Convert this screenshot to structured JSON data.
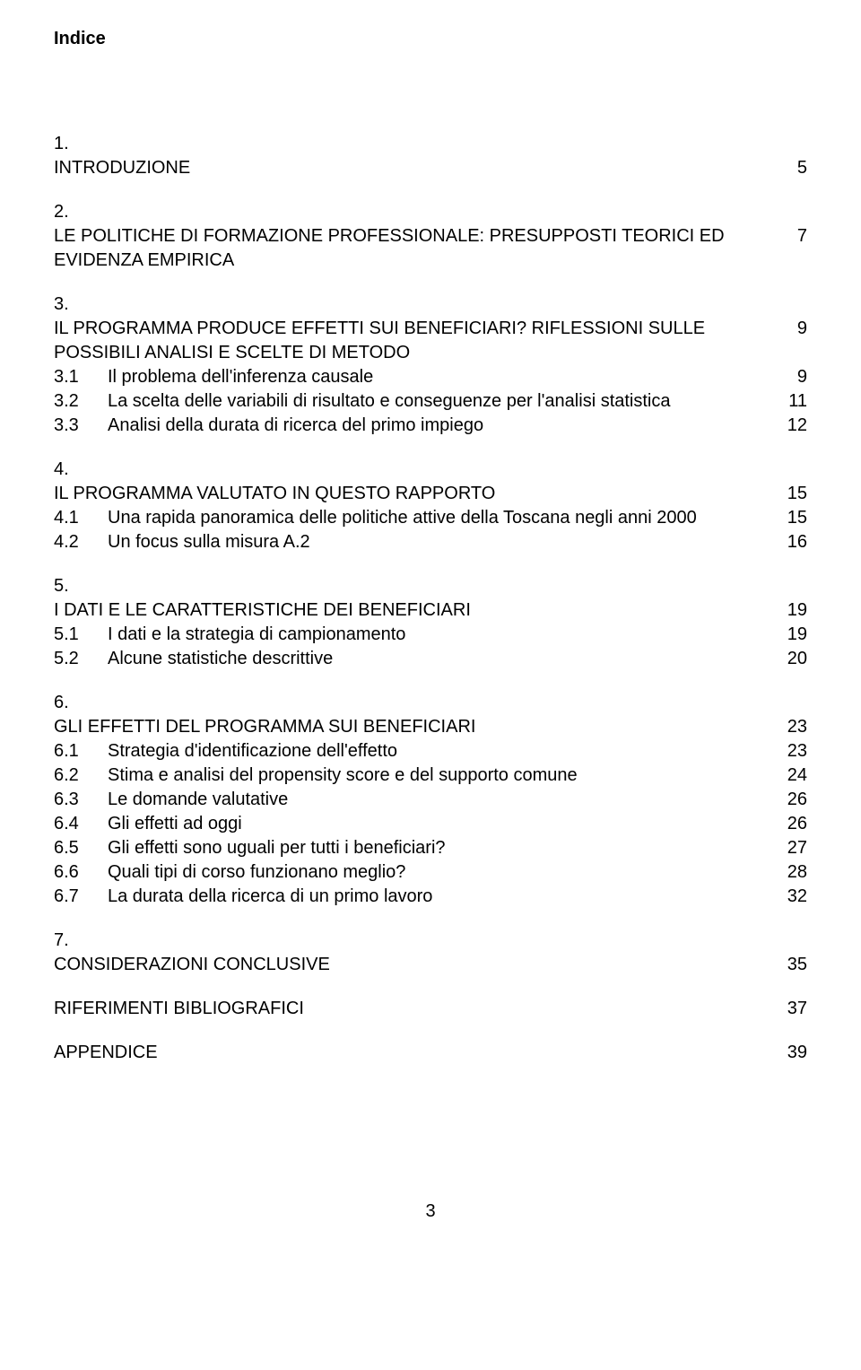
{
  "title": "Indice",
  "sections": [
    {
      "num": "1.",
      "heading": "INTRODUZIONE",
      "page": "5",
      "subs": []
    },
    {
      "num": "2.",
      "heading": "LE POLITICHE DI FORMAZIONE PROFESSIONALE: PRESUPPOSTI TEORICI ED EVIDENZA EMPIRICA",
      "page": "7",
      "subs": []
    },
    {
      "num": "3.",
      "heading": "IL PROGRAMMA PRODUCE EFFETTI SUI BENEFICIARI? RIFLESSIONI SULLE POSSIBILI ANALISI E SCELTE DI METODO",
      "page": "9",
      "subs": [
        {
          "num": "3.1",
          "label": "Il problema dell'inferenza causale",
          "page": "9"
        },
        {
          "num": "3.2",
          "label": "La scelta delle variabili di risultato e conseguenze per l'analisi statistica",
          "page": "11"
        },
        {
          "num": "3.3",
          "label": "Analisi della durata di ricerca del primo impiego",
          "page": "12"
        }
      ]
    },
    {
      "num": "4.",
      "heading": "IL PROGRAMMA VALUTATO IN QUESTO RAPPORTO",
      "page": "15",
      "subs": [
        {
          "num": "4.1",
          "label": "Una rapida panoramica delle politiche attive della Toscana negli anni 2000",
          "page": "15"
        },
        {
          "num": "4.2",
          "label": "Un focus sulla misura A.2",
          "page": "16"
        }
      ]
    },
    {
      "num": "5.",
      "heading": "I DATI E LE CARATTERISTICHE DEI BENEFICIARI",
      "page": "19",
      "subs": [
        {
          "num": "5.1",
          "label": "I dati e la strategia di campionamento",
          "page": "19"
        },
        {
          "num": "5.2",
          "label": "Alcune statistiche descrittive",
          "page": "20"
        }
      ]
    },
    {
      "num": "6.",
      "heading": "GLI EFFETTI DEL PROGRAMMA SUI BENEFICIARI",
      "page": "23",
      "subs": [
        {
          "num": "6.1",
          "label": "Strategia d'identificazione dell'effetto",
          "page": "23"
        },
        {
          "num": "6.2",
          "label": "Stima e analisi del propensity score e del supporto comune",
          "page": "24"
        },
        {
          "num": "6.3",
          "label": "Le domande valutative",
          "page": "26"
        },
        {
          "num": "6.4",
          "label": "Gli effetti ad oggi",
          "page": "26"
        },
        {
          "num": "6.5",
          "label": "Gli effetti sono uguali per tutti i beneficiari?",
          "page": "27"
        },
        {
          "num": "6.6",
          "label": "Quali tipi di corso funzionano meglio?",
          "page": "28"
        },
        {
          "num": "6.7",
          "label": "La durata della ricerca di un primo lavoro",
          "page": "32"
        }
      ]
    },
    {
      "num": "7.",
      "heading": "CONSIDERAZIONI CONCLUSIVE",
      "page": "35",
      "subs": []
    }
  ],
  "standalone": [
    {
      "label": "RIFERIMENTI BIBLIOGRAFICI",
      "page": "37"
    },
    {
      "label": "APPENDICE",
      "page": "39"
    }
  ],
  "footerPage": "3"
}
